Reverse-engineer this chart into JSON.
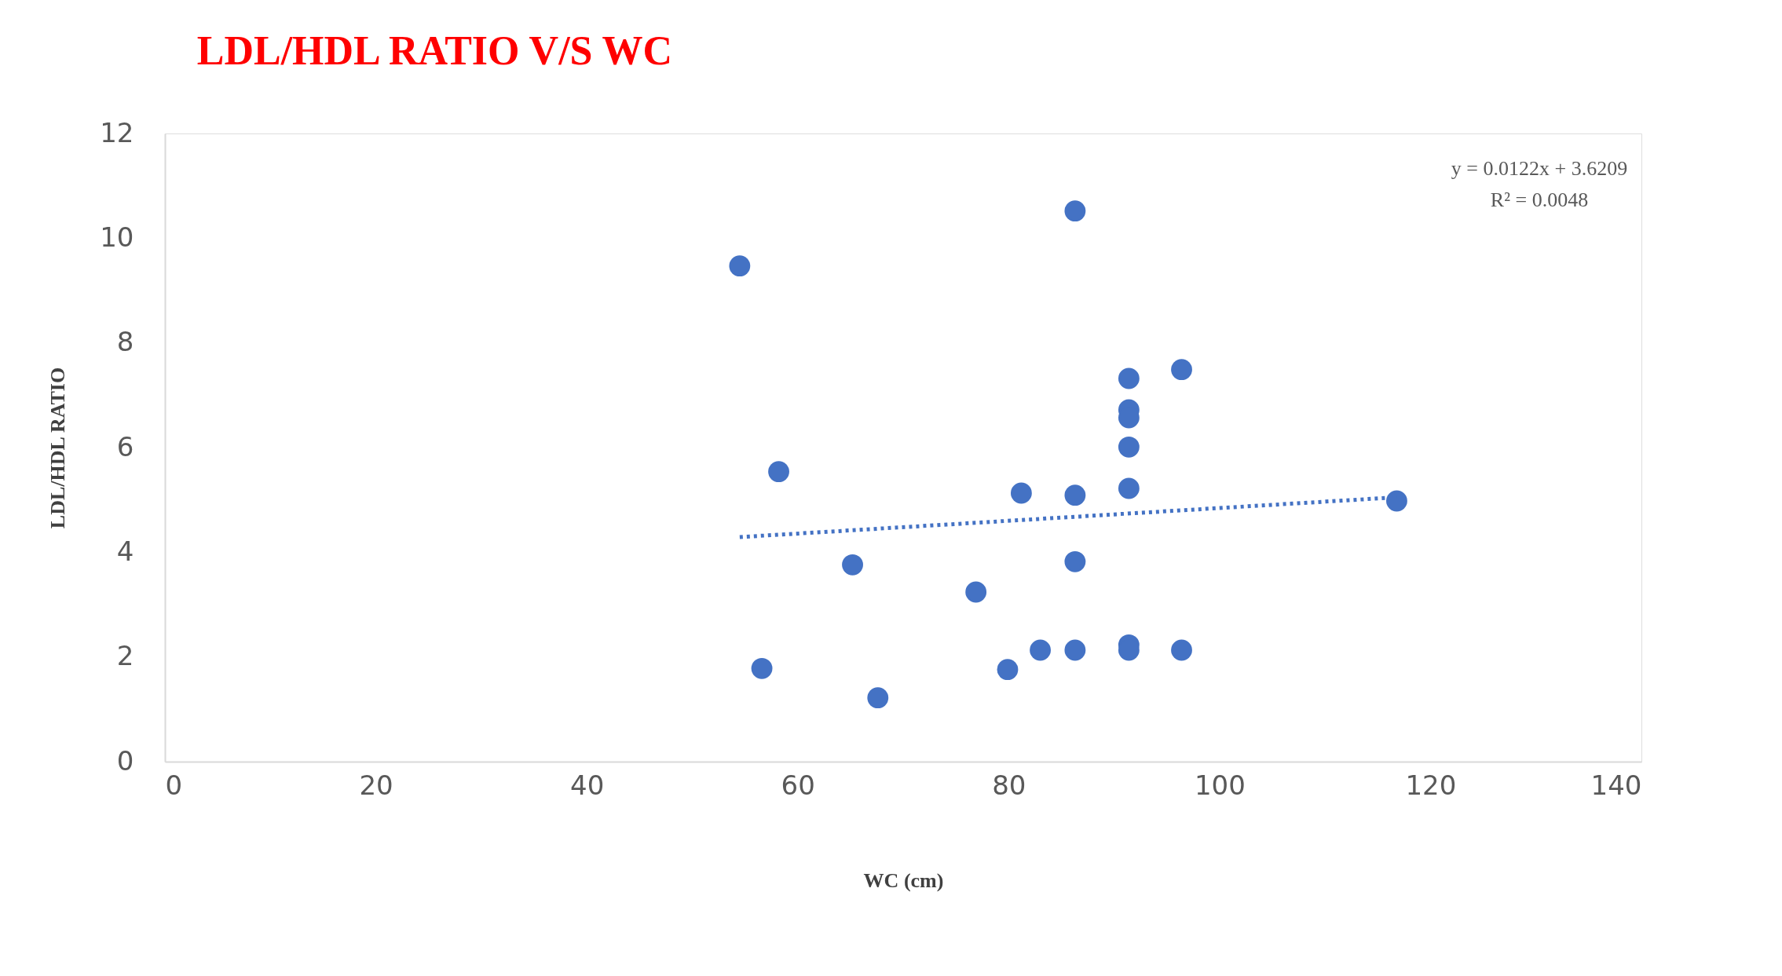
{
  "chart_data": {
    "type": "scatter",
    "title": "LDL/HDL RATIO V/S WC",
    "xlabel": "WC (cm)",
    "ylabel": "LDL/HDL RATIO",
    "xlim": [
      0,
      140
    ],
    "xticks": [
      0,
      20,
      40,
      60,
      80,
      100,
      120,
      140
    ],
    "ylim": [
      0,
      12
    ],
    "yticks": [
      0,
      2,
      4,
      6,
      8,
      10,
      12
    ],
    "grid": false,
    "annotations": [
      "y = 0.0122x + 3.6209",
      "R² = 0.0048"
    ],
    "series": [
      {
        "color": "#4472c4",
        "marker": "circle",
        "x": [
          54.5,
          86.3,
          58.2,
          56.6,
          65.2,
          67.6,
          76.9,
          79.9,
          81.2,
          83.0,
          86.3,
          86.3,
          86.3,
          91.4,
          91.4,
          91.4,
          91.4,
          91.4,
          91.4,
          91.4,
          96.4,
          96.4,
          116.8
        ],
        "values": [
          9.47,
          10.52,
          5.54,
          1.78,
          3.76,
          1.22,
          3.24,
          1.76,
          5.13,
          2.13,
          5.09,
          3.82,
          2.13,
          7.32,
          6.72,
          6.57,
          6.01,
          5.22,
          2.23,
          2.13,
          7.49,
          2.13,
          4.98
        ]
      },
      {
        "type": "line",
        "color": "#4472c4",
        "line_style": "dotted",
        "marker": "none",
        "x": [
          54.5,
          116.8
        ],
        "values": [
          4.29,
          5.05
        ]
      }
    ]
  }
}
